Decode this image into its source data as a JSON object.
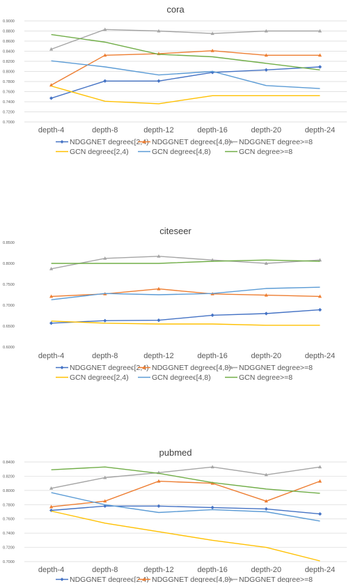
{
  "chart_data": [
    {
      "type": "line",
      "title": "cora",
      "xlabel": "",
      "ylabel": "",
      "categories": [
        "depth-4",
        "depth-8",
        "depth-12",
        "depth-16",
        "depth-20",
        "depth-24"
      ],
      "ylim": [
        0.7,
        0.9
      ],
      "ytick_step": 0.02,
      "yticks": [
        "0.7000",
        "0.7200",
        "0.7400",
        "0.7600",
        "0.7800",
        "0.8000",
        "0.8200",
        "0.8400",
        "0.8600",
        "0.8800",
        "0.9000"
      ],
      "grid": true,
      "legend_position": "bottom",
      "series": [
        {
          "name": "NDGGNET degreeϵ[2,4)",
          "color": "#4472c4",
          "marker": "diamond",
          "values": [
            0.747,
            0.781,
            0.781,
            0.798,
            0.803,
            0.809
          ]
        },
        {
          "name": "NDGGNET degreeϵ[4,8)",
          "color": "#ed7d31",
          "marker": "triangle",
          "values": [
            0.773,
            0.832,
            0.835,
            0.841,
            0.832,
            0.832
          ]
        },
        {
          "name": "NDGGNET degree>=8",
          "color": "#a5a5a5",
          "marker": "triangle",
          "values": [
            0.844,
            0.883,
            0.88,
            0.875,
            0.88,
            0.88
          ]
        },
        {
          "name": "GCN degreeϵ[2,4)",
          "color": "#ffc000",
          "marker": "none",
          "values": [
            0.771,
            0.741,
            0.736,
            0.752,
            0.752,
            0.752
          ]
        },
        {
          "name": "GCN degreeϵ[4,8)",
          "color": "#5b9bd5",
          "marker": "none",
          "values": [
            0.821,
            0.809,
            0.793,
            0.8,
            0.772,
            0.766
          ]
        },
        {
          "name": "GCN degree>=8",
          "color": "#70ad47",
          "marker": "none",
          "values": [
            0.873,
            0.858,
            0.834,
            0.829,
            0.816,
            0.803
          ]
        }
      ]
    },
    {
      "type": "line",
      "title": "citeseer",
      "xlabel": "",
      "ylabel": "",
      "categories": [
        "depth-4",
        "depth-8",
        "depth-12",
        "depth-16",
        "depth-20",
        "depth-24"
      ],
      "ylim": [
        0.6,
        0.85
      ],
      "ytick_step": 0.05,
      "yticks": [
        "0.6000",
        "0.6500",
        "0.7000",
        "0.7500",
        "0.8000",
        "0.8500"
      ],
      "grid": false,
      "legend_position": "bottom",
      "series": [
        {
          "name": "NDGGNET degreeϵ[2,4)",
          "color": "#4472c4",
          "marker": "diamond",
          "values": [
            0.657,
            0.663,
            0.664,
            0.676,
            0.68,
            0.689
          ]
        },
        {
          "name": "NDGGNET degreeϵ[4,8)",
          "color": "#ed7d31",
          "marker": "triangle",
          "values": [
            0.721,
            0.727,
            0.739,
            0.727,
            0.724,
            0.721
          ]
        },
        {
          "name": "NDGGNET degree>=8",
          "color": "#a5a5a5",
          "marker": "triangle",
          "values": [
            0.787,
            0.812,
            0.817,
            0.808,
            0.8,
            0.808
          ]
        },
        {
          "name": "GCN degreeϵ[2,4)",
          "color": "#ffc000",
          "marker": "none",
          "values": [
            0.662,
            0.657,
            0.655,
            0.655,
            0.652,
            0.652
          ]
        },
        {
          "name": "GCN degreeϵ[4,8)",
          "color": "#5b9bd5",
          "marker": "none",
          "values": [
            0.713,
            0.728,
            0.725,
            0.728,
            0.74,
            0.743
          ]
        },
        {
          "name": "GCN degree>=8",
          "color": "#70ad47",
          "marker": "none",
          "values": [
            0.8,
            0.8,
            0.8,
            0.805,
            0.808,
            0.805
          ]
        }
      ]
    },
    {
      "type": "line",
      "title": "pubmed",
      "xlabel": "",
      "ylabel": "",
      "categories": [
        "depth-4",
        "depth-8",
        "depth-12",
        "depth-16",
        "depth-20",
        "depth-24"
      ],
      "ylim": [
        0.7,
        0.84
      ],
      "ytick_step": 0.02,
      "yticks": [
        "0.7000",
        "0.7200",
        "0.7400",
        "0.7600",
        "0.7800",
        "0.8000",
        "0.8200",
        "0.8400"
      ],
      "grid": true,
      "legend_position": "bottom",
      "series": [
        {
          "name": "NDGGNET degreeϵ[2,4)",
          "color": "#4472c4",
          "marker": "diamond",
          "values": [
            0.772,
            0.778,
            0.778,
            0.776,
            0.774,
            0.767
          ]
        },
        {
          "name": "NDGGNET degreeϵ[4,8)",
          "color": "#ed7d31",
          "marker": "triangle",
          "values": [
            0.777,
            0.785,
            0.813,
            0.81,
            0.785,
            0.813
          ]
        },
        {
          "name": "NDGGNET degree>=8",
          "color": "#a5a5a5",
          "marker": "triangle",
          "values": [
            0.803,
            0.818,
            0.825,
            0.833,
            0.822,
            0.833
          ]
        },
        {
          "name": "GCN degreeϵ[2,4)",
          "color": "#ffc000",
          "marker": "none",
          "values": [
            0.771,
            0.754,
            0.742,
            0.73,
            0.72,
            0.701
          ]
        },
        {
          "name": "GCN degreeϵ[4,8)",
          "color": "#5b9bd5",
          "marker": "none",
          "values": [
            0.797,
            0.78,
            0.769,
            0.773,
            0.77,
            0.757
          ]
        },
        {
          "name": "GCN degree>=8",
          "color": "#70ad47",
          "marker": "none",
          "values": [
            0.829,
            0.833,
            0.824,
            0.811,
            0.802,
            0.796
          ]
        }
      ]
    }
  ]
}
